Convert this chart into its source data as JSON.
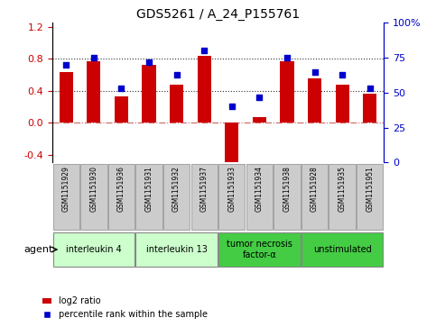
{
  "title": "GDS5261 / A_24_P155761",
  "samples": [
    "GSM1151929",
    "GSM1151930",
    "GSM1151936",
    "GSM1151931",
    "GSM1151932",
    "GSM1151937",
    "GSM1151933",
    "GSM1151934",
    "GSM1151938",
    "GSM1151928",
    "GSM1151935",
    "GSM1151951"
  ],
  "log2_ratio": [
    0.63,
    0.77,
    0.33,
    0.72,
    0.48,
    0.84,
    -0.52,
    0.07,
    0.77,
    0.56,
    0.48,
    0.36
  ],
  "percentile_rank": [
    70,
    75,
    53,
    72,
    63,
    80,
    40,
    47,
    75,
    65,
    63,
    53
  ],
  "bar_color": "#cc0000",
  "dot_color": "#0000cc",
  "groups": [
    {
      "label": "interleukin 4",
      "start": 0,
      "end": 3,
      "color": "#ccffcc"
    },
    {
      "label": "interleukin 13",
      "start": 3,
      "end": 6,
      "color": "#ccffcc"
    },
    {
      "label": "tumor necrosis\nfactor-α",
      "start": 6,
      "end": 9,
      "color": "#44cc44"
    },
    {
      "label": "unstimulated",
      "start": 9,
      "end": 12,
      "color": "#44cc44"
    }
  ],
  "ylim_left": [
    -0.5,
    1.25
  ],
  "ylim_right": [
    0,
    100
  ],
  "yticks_left": [
    -0.4,
    0.0,
    0.4,
    0.8,
    1.2
  ],
  "yticks_right": [
    0,
    25,
    50,
    75,
    100
  ],
  "yticklabels_right": [
    "0",
    "25",
    "50",
    "75",
    "100%"
  ],
  "hlines": [
    0.4,
    0.8
  ],
  "zero_line_color": "#cc6666",
  "dotted_line_color": "#333333",
  "agent_label": "agent",
  "legend_bar_label": "log2 ratio",
  "legend_dot_label": "percentile rank within the sample",
  "bg_color": "#ffffff",
  "plot_bg_color": "#ffffff",
  "sample_box_color": "#cccccc",
  "group_border_color": "#888888"
}
